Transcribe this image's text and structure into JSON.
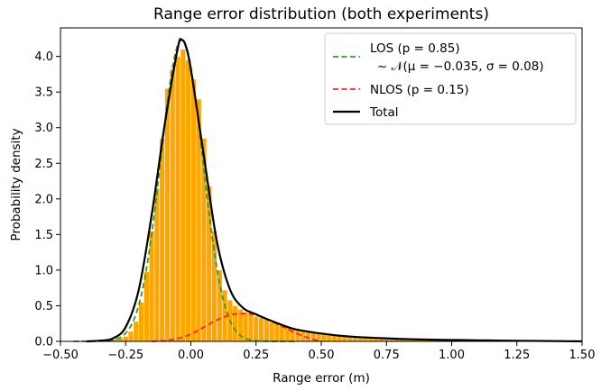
{
  "chart_data": {
    "type": "bar",
    "title": "Range error distribution (both experiments)",
    "xlabel": "Range error (m)",
    "ylabel": "Probability density",
    "xlim": [
      -0.5,
      1.5
    ],
    "ylim": [
      0.0,
      4.4
    ],
    "x_ticks": [
      -0.5,
      -0.25,
      0.0,
      0.25,
      0.5,
      0.75,
      1.0,
      1.25,
      1.5
    ],
    "x_tick_labels": [
      "−0.50",
      "−0.25",
      "0.00",
      "0.25",
      "0.50",
      "0.75",
      "1.00",
      "1.25",
      "1.50"
    ],
    "y_ticks": [
      0.0,
      0.5,
      1.0,
      1.5,
      2.0,
      2.5,
      3.0,
      3.5,
      4.0
    ],
    "y_tick_labels": [
      "0.0",
      "0.5",
      "1.0",
      "1.5",
      "2.0",
      "2.5",
      "3.0",
      "3.5",
      "4.0"
    ],
    "grid": false,
    "legend_position": "top-right",
    "histogram": {
      "color": "#ffa500",
      "edge_color": "#ffffff",
      "bin_width": 0.02,
      "bins_start": [
        -0.34,
        -0.32,
        -0.3,
        -0.28,
        -0.26,
        -0.24,
        -0.22,
        -0.2,
        -0.18,
        -0.16,
        -0.14,
        -0.12,
        -0.1,
        -0.08,
        -0.06,
        -0.04,
        -0.02,
        0.0,
        0.02,
        0.04,
        0.06,
        0.08,
        0.1,
        0.12,
        0.14,
        0.16,
        0.18,
        0.2,
        0.22,
        0.24,
        0.26,
        0.28,
        0.3,
        0.32,
        0.34,
        0.36,
        0.38,
        0.4,
        0.42,
        0.44,
        0.46,
        0.48,
        0.5,
        0.52,
        0.54,
        0.56,
        0.58,
        0.6,
        0.62,
        0.64,
        0.66,
        0.68,
        0.7,
        0.72,
        0.74,
        0.76,
        0.78,
        0.8,
        0.82,
        0.84,
        0.86,
        0.88,
        0.9,
        0.92,
        0.94,
        0.96,
        0.98,
        1.0,
        1.02,
        1.04,
        1.06,
        1.08,
        1.1,
        1.12,
        1.14,
        1.16,
        1.18,
        1.2,
        1.22,
        1.24,
        1.26,
        1.28
      ],
      "density": [
        0.01,
        0.02,
        0.03,
        0.05,
        0.07,
        0.14,
        0.28,
        0.55,
        0.98,
        1.55,
        2.15,
        2.85,
        3.55,
        3.82,
        4.0,
        4.1,
        3.95,
        3.68,
        3.4,
        2.85,
        2.18,
        1.55,
        1.0,
        0.72,
        0.58,
        0.5,
        0.45,
        0.41,
        0.39,
        0.35,
        0.33,
        0.31,
        0.27,
        0.25,
        0.23,
        0.21,
        0.19,
        0.17,
        0.16,
        0.15,
        0.13,
        0.12,
        0.11,
        0.09,
        0.08,
        0.08,
        0.07,
        0.06,
        0.06,
        0.05,
        0.05,
        0.04,
        0.04,
        0.04,
        0.03,
        0.03,
        0.03,
        0.03,
        0.02,
        0.02,
        0.02,
        0.02,
        0.02,
        0.02,
        0.02,
        0.02,
        0.01,
        0.01,
        0.01,
        0.01,
        0.01,
        0.01,
        0.01,
        0.01,
        0.01,
        0.01,
        0.01,
        0.01,
        0.01,
        0.01,
        0.01,
        0.01
      ]
    },
    "series": [
      {
        "key": "los",
        "style": "dashed",
        "color": "#2ca02c",
        "weight": 0.85,
        "mu": -0.035,
        "sigma": 0.08
      },
      {
        "key": "nlos",
        "style": "dashed",
        "color": "#ff2222",
        "x": [
          -0.15,
          -0.1,
          -0.05,
          0.0,
          0.05,
          0.1,
          0.15,
          0.2,
          0.25,
          0.3,
          0.35,
          0.4,
          0.45,
          0.5
        ],
        "y": [
          0.0,
          0.01,
          0.04,
          0.1,
          0.2,
          0.3,
          0.37,
          0.39,
          0.37,
          0.3,
          0.21,
          0.12,
          0.05,
          0.0
        ]
      },
      {
        "key": "total",
        "style": "solid",
        "color": "#000000",
        "x": [
          -0.4,
          -0.35,
          -0.3,
          -0.25,
          -0.2,
          -0.15,
          -0.1,
          -0.05,
          -0.035,
          -0.02,
          0.0,
          0.05,
          0.1,
          0.15,
          0.2,
          0.25,
          0.3,
          0.35,
          0.4,
          0.5,
          0.6,
          0.7,
          0.8,
          0.9,
          1.0,
          1.1,
          1.2,
          1.3,
          1.4,
          1.5
        ],
        "y": [
          0.0,
          0.01,
          0.04,
          0.2,
          0.72,
          1.78,
          3.05,
          4.12,
          4.23,
          4.15,
          3.82,
          2.6,
          1.4,
          0.73,
          0.47,
          0.38,
          0.3,
          0.23,
          0.17,
          0.11,
          0.07,
          0.05,
          0.035,
          0.025,
          0.02,
          0.015,
          0.01,
          0.007,
          0.004,
          0.0
        ]
      }
    ],
    "legend": [
      {
        "key": "los",
        "label_lines": [
          "LOS (p = 0.85)",
          "~ 𝒩(μ = −0.035, σ = 0.08)"
        ],
        "color": "#2ca02c",
        "style": "dashed"
      },
      {
        "key": "nlos",
        "label_lines": [
          "NLOS (p = 0.15)"
        ],
        "color": "#ff2222",
        "style": "dashed"
      },
      {
        "key": "total",
        "label_lines": [
          "Total"
        ],
        "color": "#000000",
        "style": "solid"
      }
    ]
  }
}
